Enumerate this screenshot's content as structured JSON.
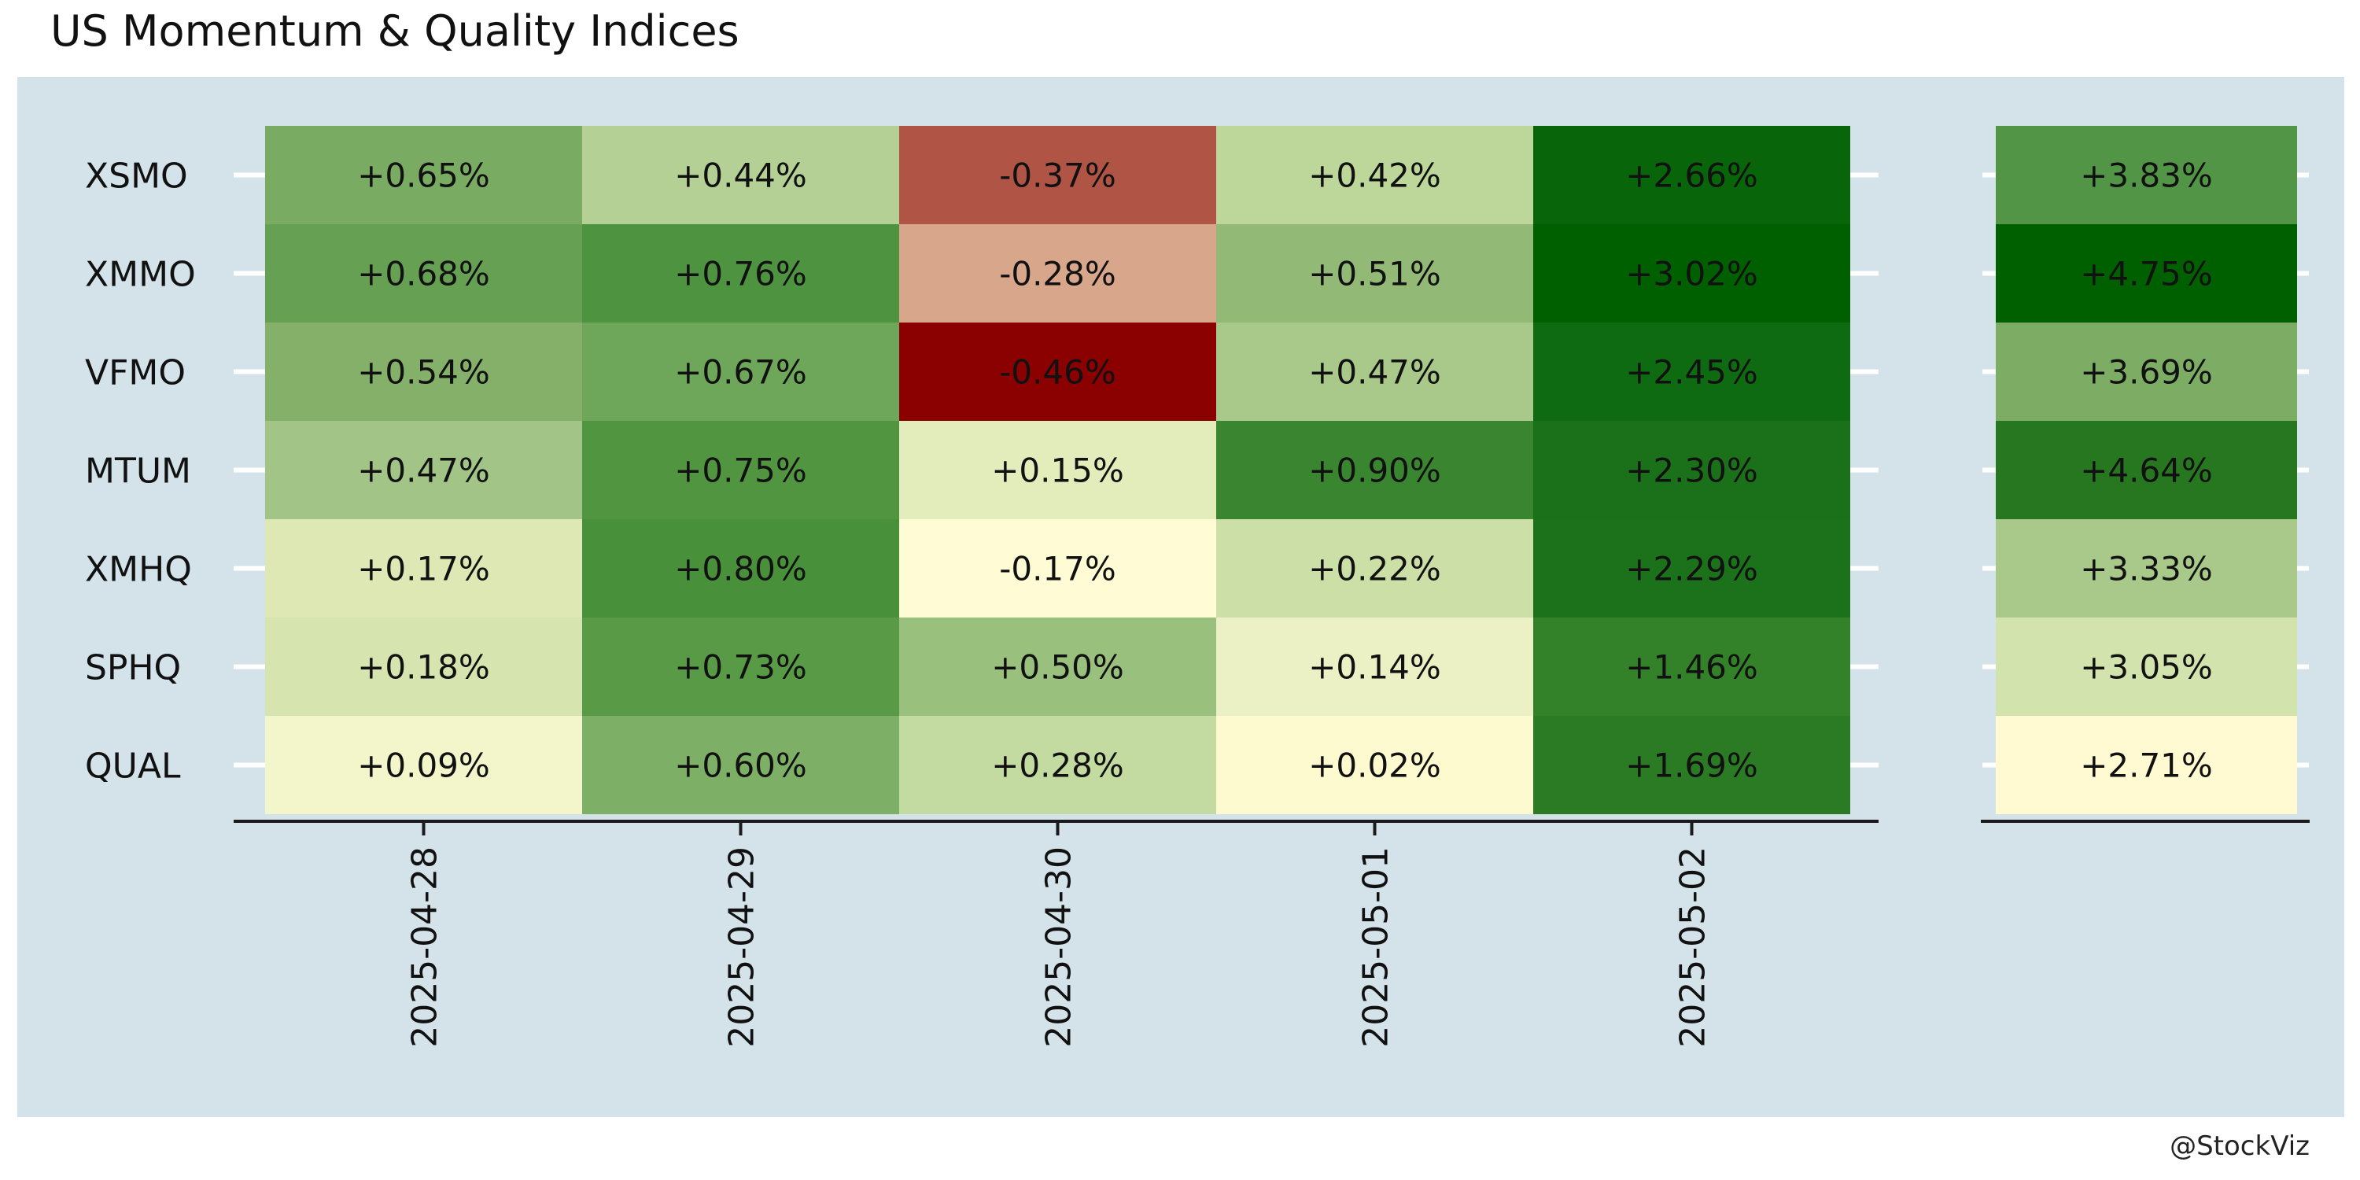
{
  "chart_data": {
    "type": "heatmap",
    "title": "US Momentum & Quality Indices",
    "caption": "@StockViz",
    "rows": [
      "XSMO",
      "XMMO",
      "VFMO",
      "MTUM",
      "XMHQ",
      "SPHQ",
      "QUAL"
    ],
    "columns": [
      "2025-04-28",
      "2025-04-29",
      "2025-04-30",
      "2025-05-01",
      "2025-05-02"
    ],
    "values": [
      [
        0.65,
        0.44,
        -0.37,
        0.42,
        2.66
      ],
      [
        0.68,
        0.76,
        -0.28,
        0.51,
        3.02
      ],
      [
        0.54,
        0.67,
        -0.46,
        0.47,
        2.45
      ],
      [
        0.47,
        0.75,
        0.15,
        0.9,
        2.3
      ],
      [
        0.17,
        0.8,
        -0.17,
        0.22,
        2.29
      ],
      [
        0.18,
        0.73,
        0.5,
        0.14,
        1.46
      ],
      [
        0.09,
        0.6,
        0.28,
        0.02,
        1.69
      ]
    ],
    "labels": [
      [
        "+0.65%",
        "+0.44%",
        "-0.37%",
        "+0.42%",
        "+2.66%"
      ],
      [
        "+0.68%",
        "+0.76%",
        "-0.28%",
        "+0.51%",
        "+3.02%"
      ],
      [
        "+0.54%",
        "+0.67%",
        "-0.46%",
        "+0.47%",
        "+2.45%"
      ],
      [
        "+0.47%",
        "+0.75%",
        "+0.15%",
        "+0.90%",
        "+2.30%"
      ],
      [
        "+0.17%",
        "+0.80%",
        "-0.17%",
        "+0.22%",
        "+2.29%"
      ],
      [
        "+0.18%",
        "+0.73%",
        "+0.50%",
        "+0.14%",
        "+1.46%"
      ],
      [
        "+0.09%",
        "+0.60%",
        "+0.28%",
        "+0.02%",
        "+1.69%"
      ]
    ],
    "cell_colors": [
      [
        "#7aab62",
        "#b4d095",
        "#b05446",
        "#bdd79a",
        "#08650a"
      ],
      [
        "#66a052",
        "#4e9340",
        "#d8a78b",
        "#92b976",
        "#006000"
      ],
      [
        "#84b06a",
        "#6ea65a",
        "#8b0000",
        "#a8c98a",
        "#0f6b12"
      ],
      [
        "#a2c587",
        "#529540",
        "#e3ecbb",
        "#3a8630",
        "#1a7119"
      ],
      [
        "#dde8b4",
        "#48903a",
        "#fffcd5",
        "#cbdfa7",
        "#1b721b"
      ],
      [
        "#d6e5b0",
        "#589a46",
        "#9ac07d",
        "#ebf1c5",
        "#338229"
      ],
      [
        "#f3f5cb",
        "#7db066",
        "#c3daa1",
        "#fdfad0",
        "#2b7a24"
      ]
    ],
    "cumulative": {
      "values": [
        3.83,
        4.75,
        3.69,
        4.64,
        3.33,
        3.05,
        2.71
      ],
      "labels": [
        "+3.83%",
        "+4.75%",
        "+3.69%",
        "+4.64%",
        "+3.33%",
        "+3.05%",
        "+2.71%"
      ],
      "cell_colors": [
        "#539546",
        "#006000",
        "#7dad64",
        "#267720",
        "#a8c98a",
        "#d3e3ad",
        "#fffad2"
      ]
    },
    "colors": {
      "panel_background": "#d4e3ea",
      "grid_line": "#ffffff",
      "axis_line": "#1a1a1a"
    },
    "xlabel": "",
    "ylabel": ""
  }
}
